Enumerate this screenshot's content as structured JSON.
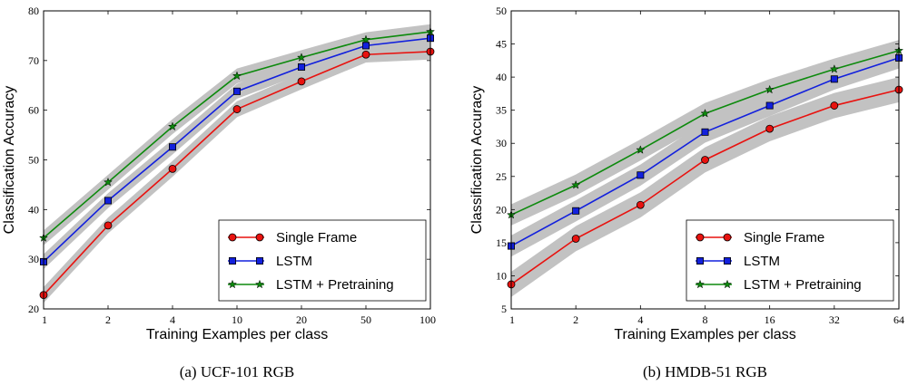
{
  "colors": {
    "single_frame": "#e8120f",
    "lstm": "#1220dd",
    "lstm_pretraining": "#0d8a0d",
    "band": "#c2c2c2"
  },
  "chart_data": [
    {
      "type": "line",
      "caption": "(a) UCF-101 RGB",
      "xlabel": "Training Examples per class",
      "ylabel": "Classification Accuracy",
      "categories": [
        "1",
        "2",
        "4",
        "10",
        "20",
        "50",
        "100"
      ],
      "ylim": [
        20,
        80
      ],
      "yticks": [
        20,
        30,
        40,
        50,
        60,
        70,
        80
      ],
      "legend": "lower-right",
      "grid": false,
      "series": [
        {
          "name": "Single Frame",
          "marker": "circle",
          "color_key": "single_frame",
          "values": [
            22.8,
            36.8,
            48.2,
            60.2,
            65.8,
            71.2,
            71.8
          ],
          "band": 1.6
        },
        {
          "name": "LSTM",
          "marker": "square",
          "color_key": "lstm",
          "values": [
            29.5,
            41.8,
            52.6,
            63.8,
            68.7,
            73.0,
            74.5
          ],
          "band": 1.5
        },
        {
          "name": "LSTM + Pretraining",
          "marker": "star",
          "color_key": "lstm_pretraining",
          "values": [
            34.3,
            45.5,
            56.7,
            66.9,
            70.6,
            74.2,
            75.8
          ],
          "band": 1.5
        }
      ]
    },
    {
      "type": "line",
      "caption": "(b) HMDB-51 RGB",
      "xlabel": "Training Examples per class",
      "ylabel": "Classification Accuracy",
      "categories": [
        "1",
        "2",
        "4",
        "8",
        "16",
        "32",
        "64"
      ],
      "ylim": [
        5,
        50
      ],
      "yticks": [
        5,
        10,
        15,
        20,
        25,
        30,
        35,
        40,
        45,
        50
      ],
      "legend": "lower-right",
      "grid": false,
      "series": [
        {
          "name": "Single Frame",
          "marker": "circle",
          "color_key": "single_frame",
          "values": [
            8.7,
            15.6,
            20.7,
            27.5,
            32.2,
            35.7,
            38.1
          ],
          "band": 1.9
        },
        {
          "name": "LSTM",
          "marker": "square",
          "color_key": "lstm",
          "values": [
            14.5,
            19.8,
            25.2,
            31.7,
            35.7,
            39.7,
            42.9
          ],
          "band": 1.6
        },
        {
          "name": "LSTM + Pretraining",
          "marker": "star",
          "color_key": "lstm_pretraining",
          "values": [
            19.2,
            23.7,
            29.0,
            34.5,
            38.1,
            41.2,
            44.0
          ],
          "band": 1.6
        }
      ]
    }
  ]
}
